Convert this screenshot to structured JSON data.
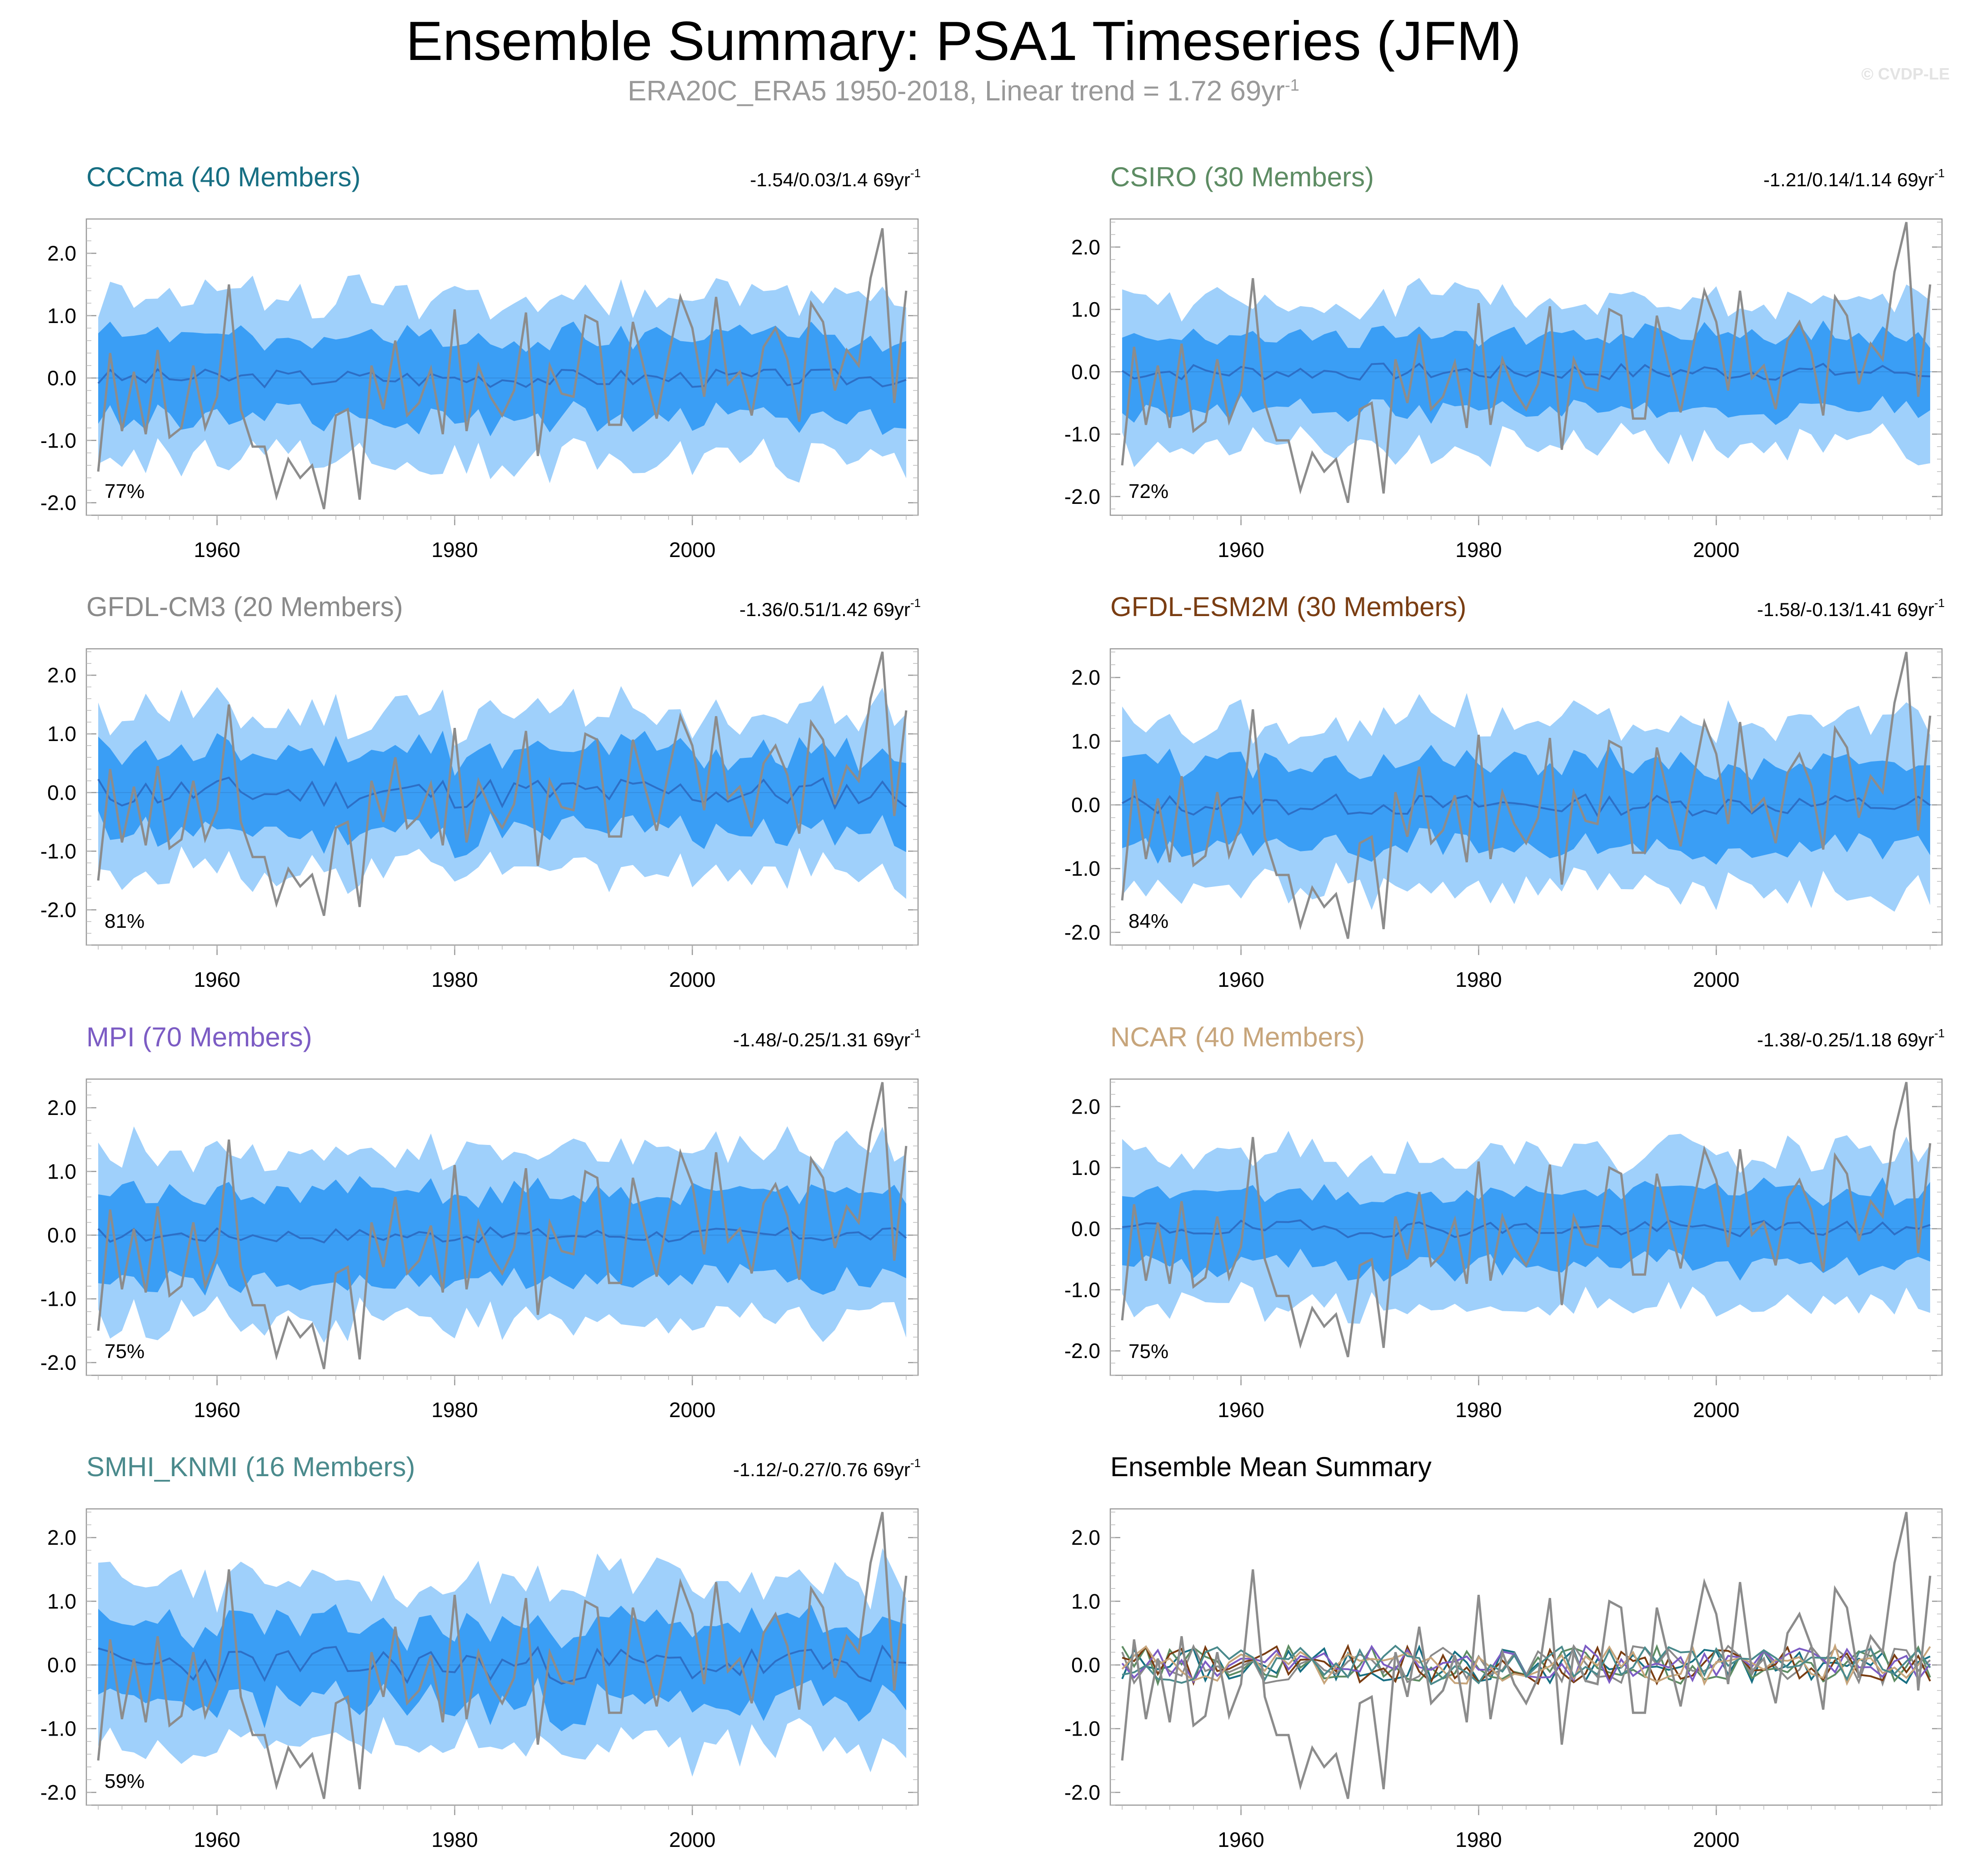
{
  "title": "Ensemble Summary: PSA1 Timeseries (JFM)",
  "subtitle_text": "ERA20C_ERA5 1950-2018, Linear trend = 1.72 69yr",
  "subtitle_sup": "-1",
  "watermark": "© CVDP-LE",
  "chart_data": [
    {
      "type": "area",
      "title": "CCCma (40 Members)",
      "color": "#176f83",
      "trend_label": "-1.54/0.03/1.4 69yr",
      "trend_sup": "-1",
      "percent_label": "77%",
      "xlim": [
        1949,
        2019
      ],
      "ylim": [
        -2.2,
        2.55
      ],
      "x_ticks": [
        1960,
        1980,
        2000
      ],
      "y_ticks": [
        2.0,
        1.0,
        0.0,
        -1.0,
        -2.0
      ],
      "y_tick_labels": [
        "2.0",
        "1.0",
        "0.0",
        "-1.0",
        "-2.0"
      ],
      "x_tick_labels": [
        "1960",
        "1980",
        "2000"
      ],
      "ens_mean_amp": 0.15,
      "outer_width": 1.3,
      "inner_width": 0.65,
      "seed": 3
    },
    {
      "type": "area",
      "title": "CSIRO (30 Members)",
      "color": "#5d8c63",
      "trend_label": "-1.21/0.14/1.14 69yr",
      "trend_sup": "-1",
      "percent_label": "72%",
      "xlim": [
        1949,
        2019
      ],
      "ylim": [
        -2.3,
        2.45
      ],
      "x_ticks": [
        1960,
        1980,
        2000
      ],
      "y_ticks": [
        2.0,
        1.0,
        0.0,
        -1.0,
        -2.0
      ],
      "y_tick_labels": [
        "2.0",
        "1.0",
        "0.0",
        "-1.0",
        "-2.0"
      ],
      "x_tick_labels": [
        "1960",
        "1980",
        "2000"
      ],
      "ens_mean_amp": 0.14,
      "outer_width": 1.15,
      "inner_width": 0.6,
      "seed": 7
    },
    {
      "type": "area",
      "title": "GFDL-CM3 (20 Members)",
      "color": "#8a8a8a",
      "trend_label": "-1.36/0.51/1.42 69yr",
      "trend_sup": "-1",
      "percent_label": "81%",
      "xlim": [
        1949,
        2019
      ],
      "ylim": [
        -2.6,
        2.45
      ],
      "x_ticks": [
        1960,
        1980,
        2000
      ],
      "y_ticks": [
        2.0,
        1.0,
        0.0,
        -1.0,
        -2.0
      ],
      "y_tick_labels": [
        "2.0",
        "1.0",
        "0.0",
        "-1.0",
        "-2.0"
      ],
      "x_tick_labels": [
        "1960",
        "1980",
        "2000"
      ],
      "ens_mean_amp": 0.28,
      "outer_width": 1.3,
      "inner_width": 0.7,
      "seed": 11
    },
    {
      "type": "area",
      "title": "GFDL-ESM2M (30 Members)",
      "color": "#7a3d12",
      "trend_label": "-1.58/-0.13/1.41 69yr",
      "trend_sup": "-1",
      "percent_label": "84%",
      "xlim": [
        1949,
        2019
      ],
      "ylim": [
        -2.2,
        2.45
      ],
      "x_ticks": [
        1960,
        1980,
        2000
      ],
      "y_ticks": [
        2.0,
        1.0,
        0.0,
        -1.0,
        -2.0
      ],
      "y_tick_labels": [
        "2.0",
        "1.0",
        "0.0",
        "-1.0",
        "-2.0"
      ],
      "x_tick_labels": [
        "1960",
        "1980",
        "2000"
      ],
      "ens_mean_amp": 0.17,
      "outer_width": 1.3,
      "inner_width": 0.65,
      "seed": 13
    },
    {
      "type": "area",
      "title": "MPI (70 Members)",
      "color": "#7c5cc4",
      "trend_label": "-1.48/-0.25/1.31 69yr",
      "trend_sup": "-1",
      "percent_label": "75%",
      "xlim": [
        1949,
        2019
      ],
      "ylim": [
        -2.2,
        2.45
      ],
      "x_ticks": [
        1960,
        1980,
        2000
      ],
      "y_ticks": [
        2.0,
        1.0,
        0.0,
        -1.0,
        -2.0
      ],
      "y_tick_labels": [
        "2.0",
        "1.0",
        "0.0",
        "-1.0",
        "-2.0"
      ],
      "x_tick_labels": [
        "1960",
        "1980",
        "2000"
      ],
      "ens_mean_amp": 0.12,
      "outer_width": 1.3,
      "inner_width": 0.7,
      "seed": 17
    },
    {
      "type": "area",
      "title": "NCAR (40 Members)",
      "color": "#c7a57b",
      "trend_label": "-1.38/-0.25/1.18 69yr",
      "trend_sup": "-1",
      "percent_label": "75%",
      "xlim": [
        1949,
        2019
      ],
      "ylim": [
        -2.4,
        2.45
      ],
      "x_ticks": [
        1960,
        1980,
        2000
      ],
      "y_ticks": [
        2.0,
        1.0,
        0.0,
        -1.0,
        -2.0
      ],
      "y_tick_labels": [
        "2.0",
        "1.0",
        "0.0",
        "-1.0",
        "-2.0"
      ],
      "x_tick_labels": [
        "1960",
        "1980",
        "2000"
      ],
      "ens_mean_amp": 0.14,
      "outer_width": 1.2,
      "inner_width": 0.6,
      "seed": 19
    },
    {
      "type": "area",
      "title": "SMHI_KNMI (16 Members)",
      "color": "#4a8a8c",
      "trend_label": "-1.12/-0.27/0.76 69yr",
      "trend_sup": "-1",
      "percent_label": "59%",
      "xlim": [
        1949,
        2019
      ],
      "ylim": [
        -2.2,
        2.45
      ],
      "x_ticks": [
        1960,
        1980,
        2000
      ],
      "y_ticks": [
        2.0,
        1.0,
        0.0,
        -1.0,
        -2.0
      ],
      "y_tick_labels": [
        "2.0",
        "1.0",
        "0.0",
        "-1.0",
        "-2.0"
      ],
      "x_tick_labels": [
        "1960",
        "1980",
        "2000"
      ],
      "ens_mean_amp": 0.3,
      "outer_width": 1.25,
      "inner_width": 0.62,
      "seed": 23
    },
    {
      "type": "line",
      "title": "Ensemble Mean Summary",
      "color": "#000000",
      "xlim": [
        1949,
        2019
      ],
      "ylim": [
        -2.2,
        2.45
      ],
      "x_ticks": [
        1960,
        1980,
        2000
      ],
      "y_ticks": [
        2.0,
        1.0,
        0.0,
        -1.0,
        -2.0
      ],
      "y_tick_labels": [
        "2.0",
        "1.0",
        "0.0",
        "-1.0",
        "-2.0"
      ],
      "x_tick_labels": [
        "1960",
        "1980",
        "2000"
      ],
      "series_colors": [
        "#176f83",
        "#5d8c63",
        "#8a8a8a",
        "#7a3d12",
        "#7c5cc4",
        "#c7a57b",
        "#4a8a8c"
      ]
    }
  ],
  "observation": {
    "name": "ERA20C_ERA5",
    "color": "#8c8c8c",
    "years": [
      1950,
      1951,
      1952,
      1953,
      1954,
      1955,
      1956,
      1957,
      1958,
      1959,
      1960,
      1961,
      1962,
      1963,
      1964,
      1965,
      1966,
      1967,
      1968,
      1969,
      1970,
      1971,
      1972,
      1973,
      1974,
      1975,
      1976,
      1977,
      1978,
      1979,
      1980,
      1981,
      1982,
      1983,
      1984,
      1985,
      1986,
      1987,
      1988,
      1989,
      1990,
      1991,
      1992,
      1993,
      1994,
      1995,
      1996,
      1997,
      1998,
      1999,
      2000,
      2001,
      2002,
      2003,
      2004,
      2005,
      2006,
      2007,
      2008,
      2009,
      2010,
      2011,
      2012,
      2013,
      2014,
      2015,
      2016,
      2017,
      2018
    ],
    "values": [
      -1.5,
      0.4,
      -0.85,
      0.1,
      -0.9,
      0.45,
      -0.95,
      -0.8,
      0.2,
      -0.8,
      -0.3,
      1.5,
      -0.5,
      -1.1,
      -1.1,
      -1.9,
      -1.3,
      -1.6,
      -1.4,
      -2.1,
      -0.6,
      -0.5,
      -1.95,
      0.2,
      -0.5,
      0.6,
      -0.6,
      -0.4,
      0.15,
      -0.9,
      1.1,
      -0.85,
      0.2,
      -0.3,
      -0.6,
      -0.2,
      1.05,
      -1.25,
      0.2,
      -0.25,
      -0.3,
      1.0,
      0.9,
      -0.75,
      -0.75,
      0.9,
      0.1,
      -0.65,
      0.35,
      1.3,
      0.8,
      -0.3,
      1.3,
      -0.1,
      0.1,
      -0.6,
      0.5,
      0.8,
      0.3,
      -0.7,
      1.2,
      0.9,
      -0.2,
      0.45,
      0.2,
      1.6,
      2.4,
      -0.4,
      1.4
    ]
  }
}
